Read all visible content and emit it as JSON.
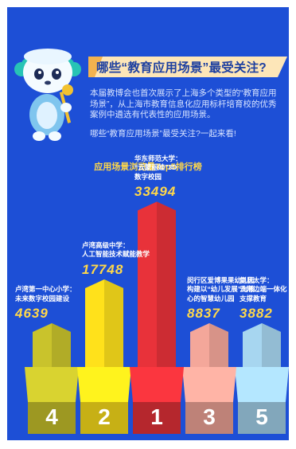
{
  "header": {
    "title": "哪些“教育应用场景”最受关注?"
  },
  "intro": {
    "p1": "本届教博会也首次展示了上海多个类型的“教育应用场景”，从上海市教育信息化应用标杆培育校的优秀案例中遴选有代表性的应用场景。",
    "p2": "哪些“教育应用场景”最受关注?一起来看!"
  },
  "chart_data": {
    "type": "bar",
    "title": "应用场景浏览量Top5排行榜",
    "categories": [
      "卢湾第一中心小学：未来数字校园建设",
      "卢湾高级中学：人工智能技术赋能教学",
      "华东师范大学：“云蒙丽娃”3D数字校园",
      "闵行区爱博果果幼儿园：构建以“幼儿发展”为核心的智慧幼儿园",
      "复旦大学：云网边端一体化支撑教育"
    ],
    "values": [
      4639,
      17748,
      33494,
      8837,
      3882
    ],
    "ranks": [
      "4",
      "2",
      "1",
      "3",
      "5"
    ],
    "colors": [
      "#c9c32c",
      "#ffe11b",
      "#e8323a",
      "#f4a79a",
      "#a7d6f0"
    ],
    "display_values": [
      "4639",
      "17748",
      "33494",
      "8837",
      "3882"
    ],
    "names": [
      [
        "卢湾第一中心小学：",
        "未来数字校园建设"
      ],
      [
        "卢湾高级中学：",
        "人工智能技术赋能教学"
      ],
      [
        "华东师范大学：",
        "“云蒙丽娃”3D",
        "数字校园"
      ],
      [
        "闵行区爱博果果幼儿园：",
        "构建以“幼儿发展”为核",
        "心的智慧幼儿园"
      ],
      [
        "复旦大学：",
        "云网边端一体化",
        "支撑教育"
      ]
    ]
  }
}
